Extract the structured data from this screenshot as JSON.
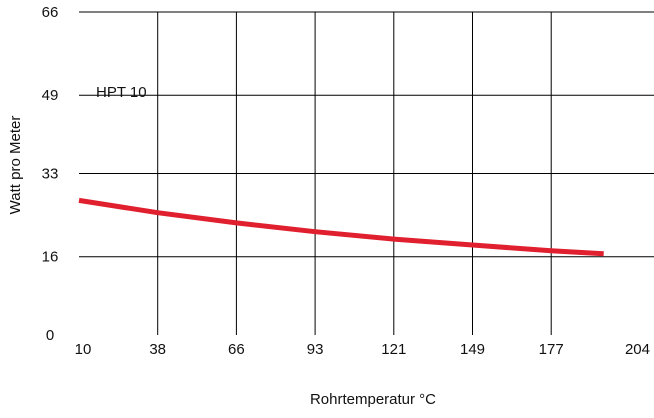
{
  "chart_data": {
    "type": "line",
    "title": "",
    "xlabel": "Rohrtemperatur °C",
    "ylabel": "Watt pro Meter",
    "x_ticks": [
      10,
      38,
      66,
      93,
      121,
      149,
      177,
      204
    ],
    "y_ticks": [
      0,
      16,
      33,
      49,
      66
    ],
    "xlim": [
      10,
      204
    ],
    "ylim": [
      0,
      66
    ],
    "grid": true,
    "series": [
      {
        "name": "HPT 10",
        "color": "#e0202e",
        "x": [
          10,
          38,
          66,
          93,
          121,
          149,
          177,
          195
        ],
        "y": [
          27.5,
          25.0,
          22.9,
          21.1,
          19.6,
          18.4,
          17.2,
          16.6
        ]
      }
    ]
  }
}
